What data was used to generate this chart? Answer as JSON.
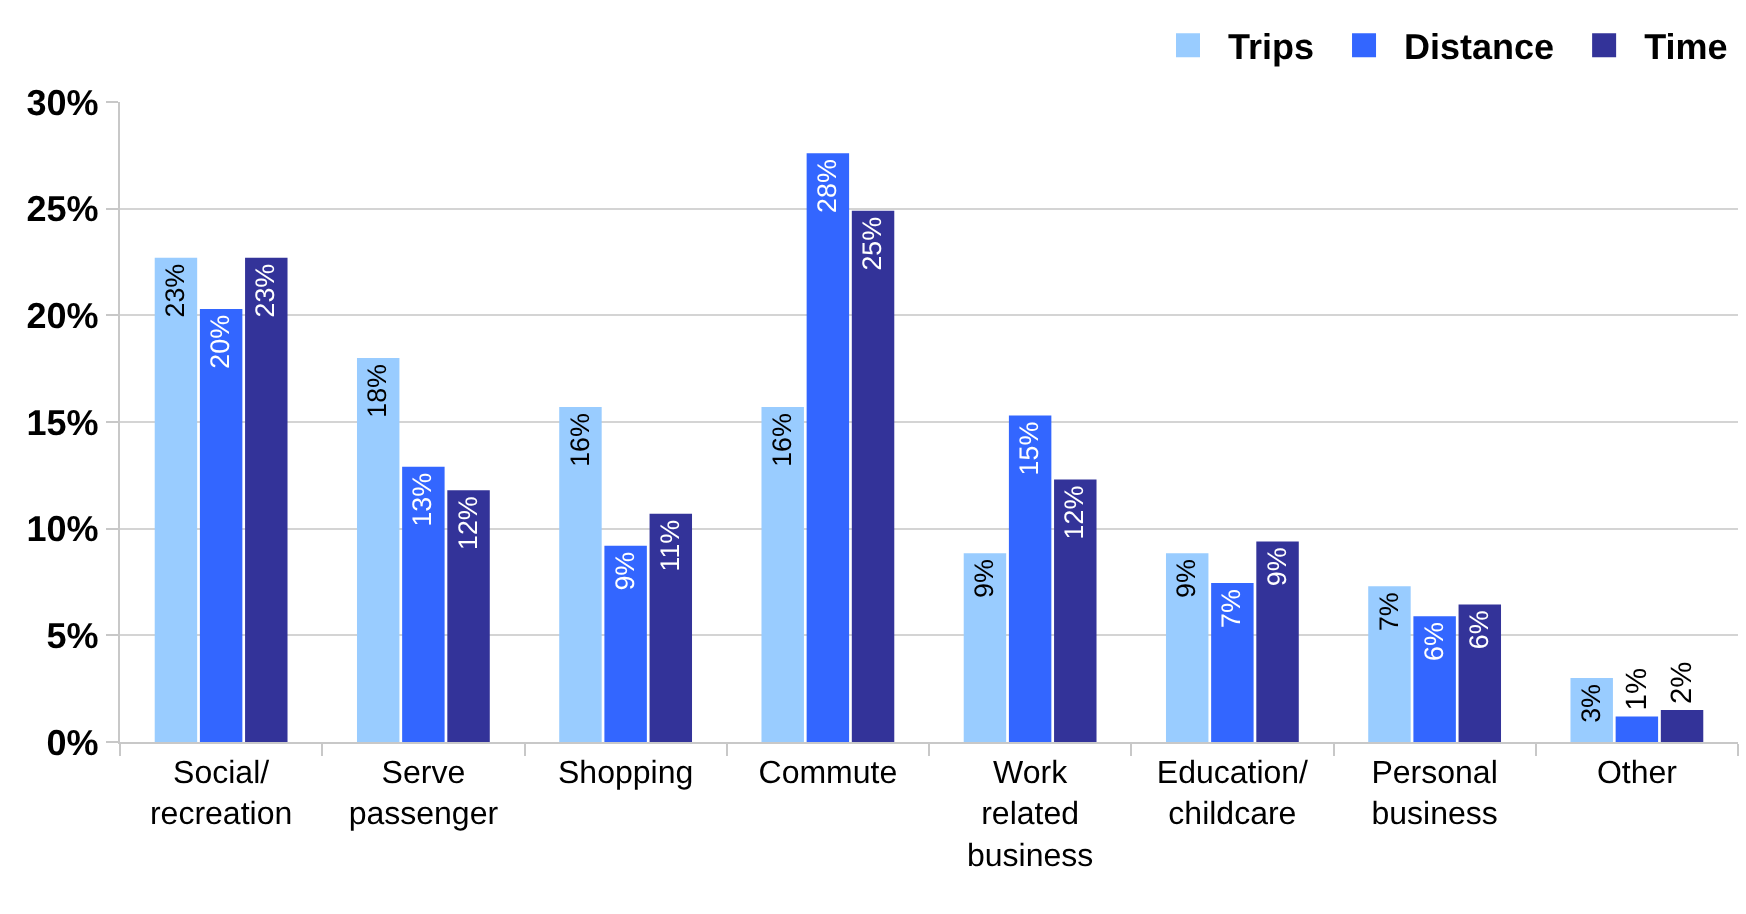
{
  "chart_data": {
    "type": "bar",
    "categories": [
      "Social/recreation",
      "Serve passenger",
      "Shopping",
      "Commute",
      "Work related business",
      "Education/childcare",
      "Personal business",
      "Other"
    ],
    "series": [
      {
        "name": "Trips",
        "color": "#99ccff",
        "values": [
          22.7,
          18.0,
          15.7,
          15.7,
          8.85,
          8.85,
          7.3,
          3.0
        ],
        "value_labels": [
          "23%",
          "18%",
          "16%",
          "16%",
          "9%",
          "9%",
          "7%",
          "3%"
        ]
      },
      {
        "name": "Distance",
        "color": "#3366ff",
        "values": [
          20.3,
          12.9,
          9.2,
          27.6,
          15.3,
          7.45,
          5.9,
          1.2
        ],
        "value_labels": [
          "20%",
          "13%",
          "9%",
          "28%",
          "15%",
          "7%",
          "6%",
          "1%"
        ]
      },
      {
        "name": "Time",
        "color": "#333399",
        "values": [
          22.7,
          11.8,
          10.7,
          24.9,
          12.3,
          9.4,
          6.45,
          1.5
        ],
        "value_labels": [
          "23%",
          "12%",
          "11%",
          "25%",
          "12%",
          "9%",
          "6%",
          "2%"
        ]
      }
    ],
    "ylim": [
      0,
      30
    ],
    "yticks": [
      {
        "value": 0,
        "label": "0%"
      },
      {
        "value": 5,
        "label": "5%"
      },
      {
        "value": 10,
        "label": "10%"
      },
      {
        "value": 15,
        "label": "15%"
      },
      {
        "value": 20,
        "label": "20%"
      },
      {
        "value": 25,
        "label": "25%"
      },
      {
        "value": 30,
        "label": "30%"
      }
    ],
    "grid": "y",
    "legend": "top right"
  }
}
